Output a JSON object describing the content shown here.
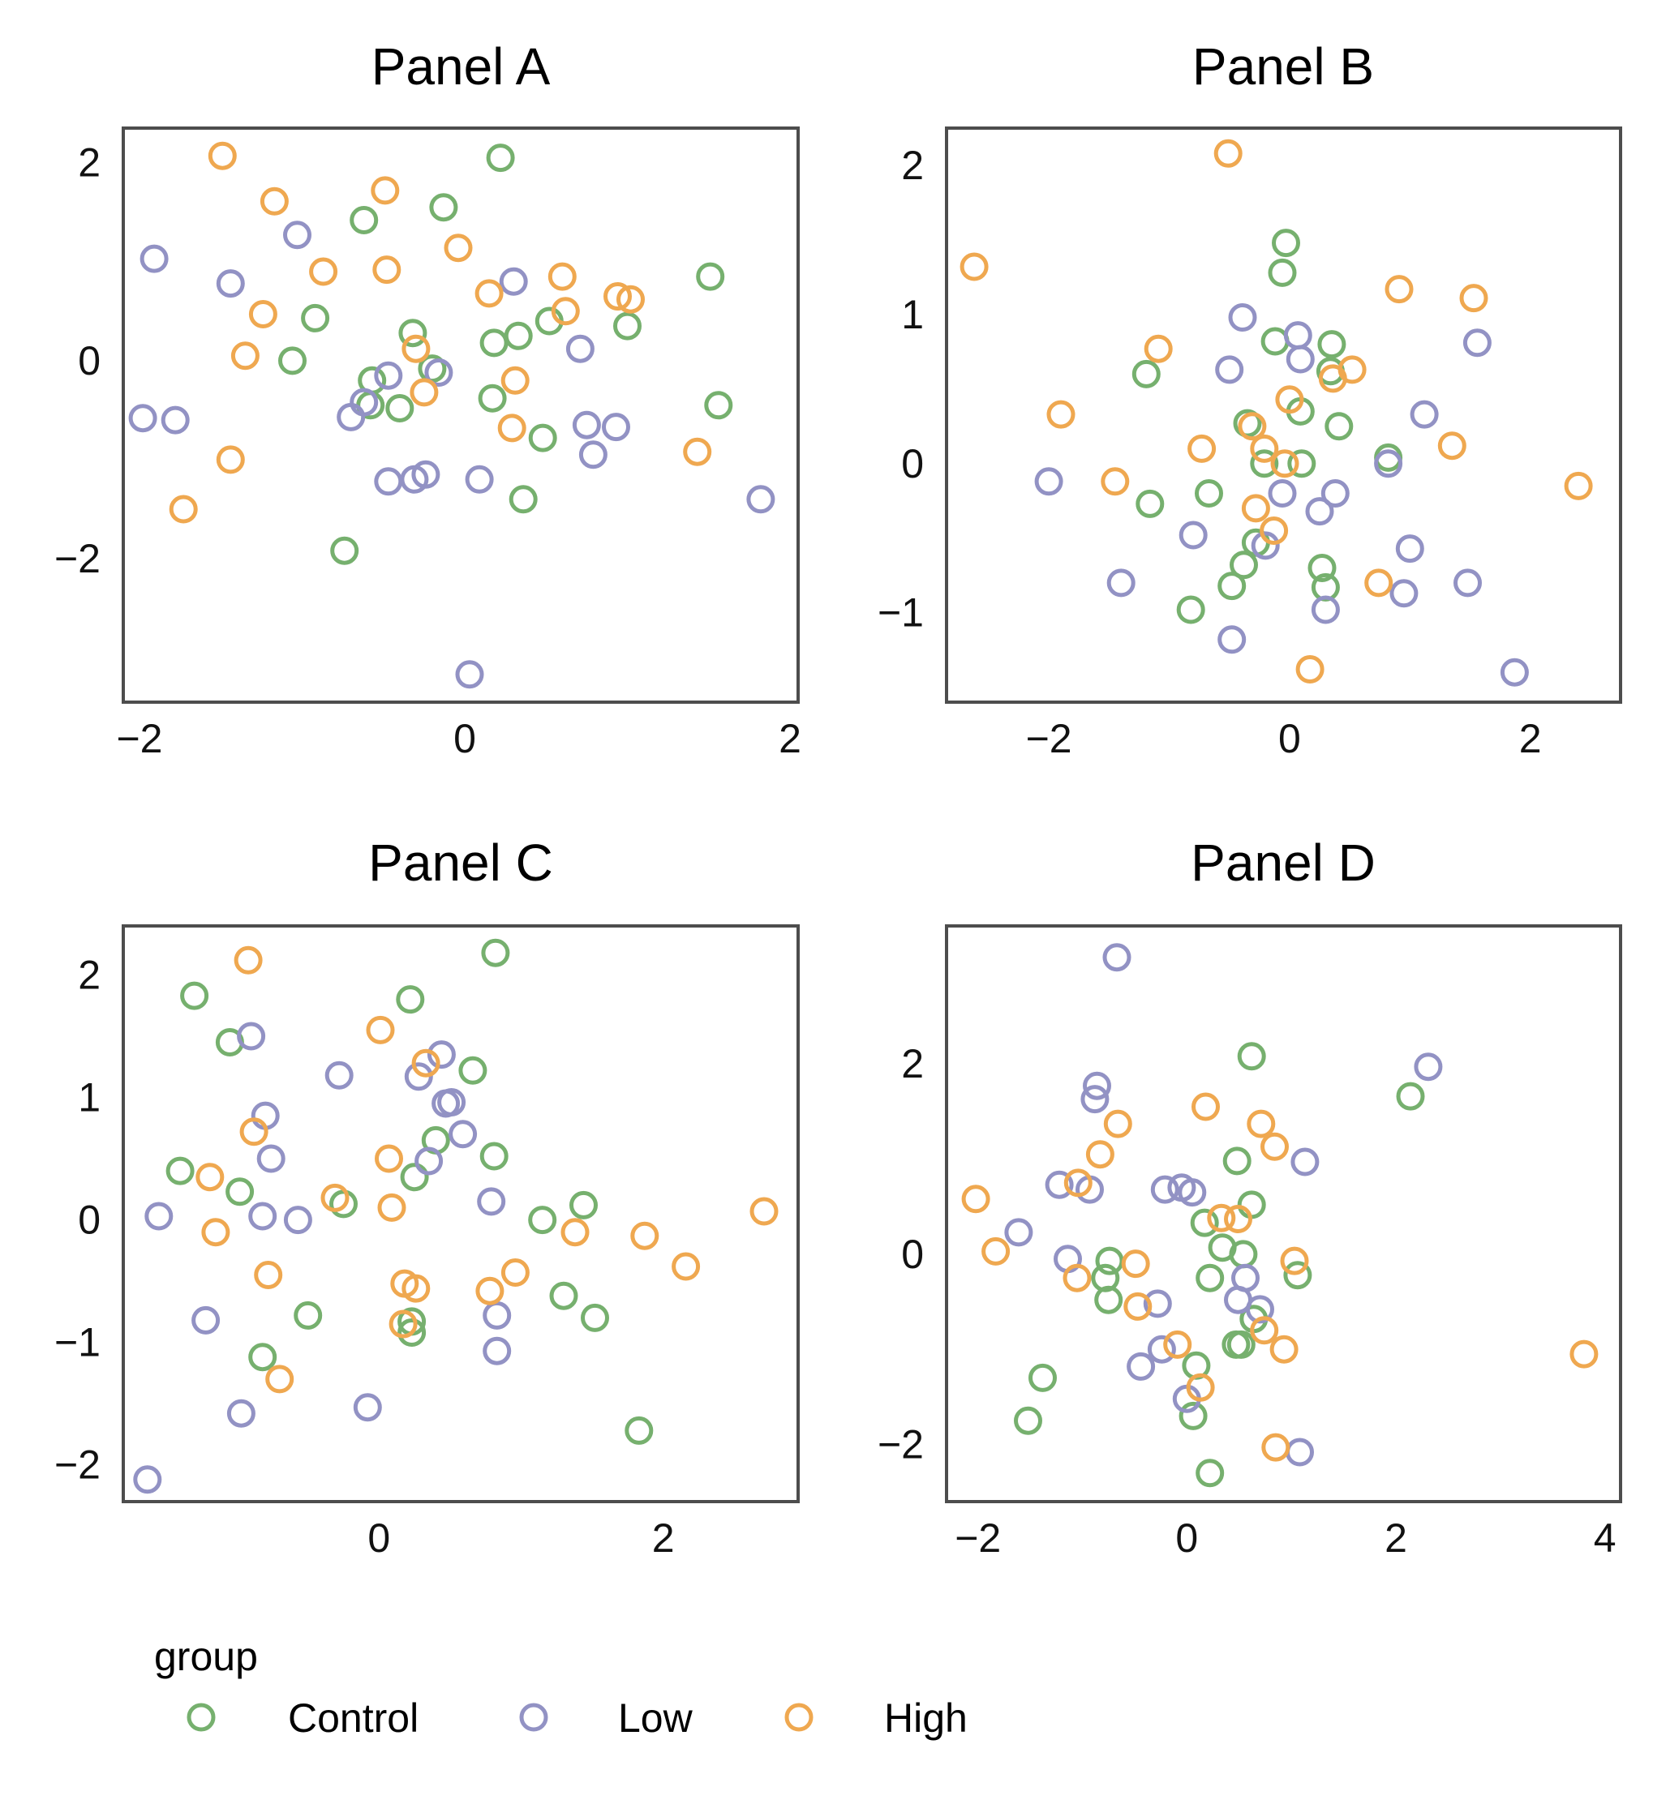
{
  "colors": {
    "Control": "#76B06E",
    "Low": "#9292C4",
    "High": "#EFA850",
    "frame": "#4d4d4d"
  },
  "legend": {
    "title": "group",
    "items": [
      {
        "key": "Control",
        "label": "Control"
      },
      {
        "key": "Low",
        "label": "Low"
      },
      {
        "key": "High",
        "label": "High"
      }
    ]
  },
  "chart_data": [
    {
      "type": "scatter",
      "title": "Panel A",
      "xlim": [
        -2.1,
        2.05
      ],
      "ylim": [
        -3.45,
        2.35
      ],
      "xticks": [
        -2,
        0,
        2
      ],
      "yticks": [
        -2,
        0,
        2
      ],
      "series": [
        {
          "name": "Control",
          "points": [
            [
              0.22,
              2.05
            ],
            [
              -0.13,
              1.55
            ],
            [
              -0.62,
              1.42
            ],
            [
              1.51,
              0.85
            ],
            [
              -0.92,
              0.43
            ],
            [
              0.52,
              0.4
            ],
            [
              1.0,
              0.35
            ],
            [
              0.33,
              0.25
            ],
            [
              -0.32,
              0.28
            ],
            [
              0.18,
              0.18
            ],
            [
              -1.06,
              0.0
            ],
            [
              -0.2,
              -0.08
            ],
            [
              -0.57,
              -0.2
            ],
            [
              -0.58,
              -0.45
            ],
            [
              -0.4,
              -0.48
            ],
            [
              0.17,
              -0.38
            ],
            [
              1.56,
              -0.45
            ],
            [
              0.48,
              -0.78
            ],
            [
              0.36,
              -1.4
            ],
            [
              -0.74,
              -1.92
            ]
          ]
        },
        {
          "name": "Low",
          "points": [
            [
              -1.91,
              1.03
            ],
            [
              -1.03,
              1.27
            ],
            [
              -1.44,
              0.78
            ],
            [
              0.3,
              0.8
            ],
            [
              0.71,
              0.12
            ],
            [
              -0.47,
              -0.15
            ],
            [
              -0.16,
              -0.12
            ],
            [
              -0.62,
              -0.42
            ],
            [
              -0.7,
              -0.57
            ],
            [
              -1.98,
              -0.58
            ],
            [
              -1.78,
              -0.6
            ],
            [
              0.75,
              -0.65
            ],
            [
              0.93,
              -0.67
            ],
            [
              0.79,
              -0.95
            ],
            [
              -0.47,
              -1.22
            ],
            [
              -0.31,
              -1.2
            ],
            [
              -0.24,
              -1.15
            ],
            [
              0.09,
              -1.2
            ],
            [
              1.82,
              -1.4
            ],
            [
              0.03,
              -3.17
            ]
          ]
        },
        {
          "name": "High",
          "points": [
            [
              -1.49,
              2.07
            ],
            [
              -1.17,
              1.61
            ],
            [
              -0.49,
              1.72
            ],
            [
              -0.04,
              1.14
            ],
            [
              -0.87,
              0.9
            ],
            [
              -0.48,
              0.92
            ],
            [
              0.15,
              0.68
            ],
            [
              0.6,
              0.85
            ],
            [
              0.94,
              0.65
            ],
            [
              1.02,
              0.62
            ],
            [
              0.62,
              0.5
            ],
            [
              -1.24,
              0.47
            ],
            [
              -1.35,
              0.05
            ],
            [
              -0.3,
              0.12
            ],
            [
              0.31,
              -0.2
            ],
            [
              -0.25,
              -0.32
            ],
            [
              0.29,
              -0.68
            ],
            [
              1.43,
              -0.92
            ],
            [
              -1.44,
              -1.0
            ],
            [
              -1.73,
              -1.5
            ]
          ]
        }
      ]
    },
    {
      "type": "scatter",
      "title": "Panel B",
      "xlim": [
        -2.85,
        2.75
      ],
      "ylim": [
        -1.6,
        2.25
      ],
      "xticks": [
        -2,
        0,
        2
      ],
      "yticks": [
        -1,
        0,
        1,
        2
      ],
      "series": [
        {
          "name": "Control",
          "points": [
            [
              -0.03,
              1.48
            ],
            [
              -0.06,
              1.28
            ],
            [
              -0.12,
              0.82
            ],
            [
              0.35,
              0.8
            ],
            [
              0.34,
              0.62
            ],
            [
              -1.19,
              0.6
            ],
            [
              0.09,
              0.35
            ],
            [
              -0.35,
              0.27
            ],
            [
              0.41,
              0.25
            ],
            [
              0.82,
              0.04
            ],
            [
              -0.21,
              0.0
            ],
            [
              0.1,
              0.0
            ],
            [
              -1.16,
              -0.27
            ],
            [
              -0.67,
              -0.2
            ],
            [
              -0.28,
              -0.53
            ],
            [
              -0.38,
              -0.68
            ],
            [
              0.27,
              -0.7
            ],
            [
              0.3,
              -0.83
            ],
            [
              -0.48,
              -0.82
            ],
            [
              -0.82,
              -0.98
            ]
          ]
        },
        {
          "name": "Low",
          "points": [
            [
              -0.39,
              0.98
            ],
            [
              0.07,
              0.86
            ],
            [
              1.56,
              0.81
            ],
            [
              0.09,
              0.7
            ],
            [
              -0.5,
              0.63
            ],
            [
              1.12,
              0.33
            ],
            [
              0.82,
              0.0
            ],
            [
              -0.06,
              -0.2
            ],
            [
              0.38,
              -0.2
            ],
            [
              0.25,
              -0.32
            ],
            [
              -2.0,
              -0.12
            ],
            [
              -0.8,
              -0.48
            ],
            [
              -0.2,
              -0.55
            ],
            [
              1.0,
              -0.57
            ],
            [
              -1.4,
              -0.8
            ],
            [
              0.95,
              -0.87
            ],
            [
              1.48,
              -0.8
            ],
            [
              0.3,
              -0.98
            ],
            [
              -0.48,
              -1.18
            ],
            [
              1.87,
              -1.4
            ]
          ]
        },
        {
          "name": "High",
          "points": [
            [
              -0.51,
              2.08
            ],
            [
              -2.62,
              1.32
            ],
            [
              0.91,
              1.17
            ],
            [
              1.53,
              1.11
            ],
            [
              -1.09,
              0.77
            ],
            [
              0.52,
              0.63
            ],
            [
              0.36,
              0.57
            ],
            [
              0.0,
              0.43
            ],
            [
              -1.9,
              0.33
            ],
            [
              -0.31,
              0.25
            ],
            [
              -0.73,
              0.1
            ],
            [
              -0.21,
              0.1
            ],
            [
              1.35,
              0.12
            ],
            [
              -0.04,
              0.0
            ],
            [
              -1.45,
              -0.12
            ],
            [
              -0.28,
              -0.3
            ],
            [
              -0.13,
              -0.45
            ],
            [
              2.4,
              -0.15
            ],
            [
              0.74,
              -0.8
            ],
            [
              0.17,
              -1.38
            ]
          ]
        }
      ]
    },
    {
      "type": "scatter",
      "title": "Panel C",
      "xlim": [
        -1.8,
        2.95
      ],
      "ylim": [
        -2.3,
        2.4
      ],
      "xticks": [
        0,
        2
      ],
      "yticks": [
        -2,
        -1,
        0,
        1,
        2
      ],
      "series": [
        {
          "name": "Control",
          "points": [
            [
              0.82,
              2.18
            ],
            [
              -1.3,
              1.83
            ],
            [
              0.22,
              1.8
            ],
            [
              -1.05,
              1.45
            ],
            [
              0.66,
              1.22
            ],
            [
              0.4,
              0.65
            ],
            [
              0.81,
              0.52
            ],
            [
              -1.4,
              0.4
            ],
            [
              0.25,
              0.35
            ],
            [
              -0.98,
              0.23
            ],
            [
              -0.25,
              0.13
            ],
            [
              1.44,
              0.12
            ],
            [
              1.15,
              0.0
            ],
            [
              1.3,
              -0.62
            ],
            [
              -0.5,
              -0.78
            ],
            [
              1.52,
              -0.8
            ],
            [
              0.23,
              -0.83
            ],
            [
              0.23,
              -0.92
            ],
            [
              -0.82,
              -1.12
            ],
            [
              1.83,
              -1.72
            ]
          ]
        },
        {
          "name": "Low",
          "points": [
            [
              -0.9,
              1.5
            ],
            [
              0.44,
              1.35
            ],
            [
              -0.28,
              1.18
            ],
            [
              0.28,
              1.17
            ],
            [
              0.51,
              0.96
            ],
            [
              0.47,
              0.95
            ],
            [
              -0.8,
              0.85
            ],
            [
              0.59,
              0.7
            ],
            [
              0.35,
              0.48
            ],
            [
              -0.76,
              0.5
            ],
            [
              0.79,
              0.15
            ],
            [
              -1.55,
              0.03
            ],
            [
              -0.82,
              0.03
            ],
            [
              -0.57,
              0.0
            ],
            [
              0.83,
              -0.78
            ],
            [
              -1.22,
              -0.82
            ],
            [
              0.83,
              -1.07
            ],
            [
              -0.97,
              -1.58
            ],
            [
              -0.08,
              -1.53
            ],
            [
              -1.63,
              -2.12
            ]
          ]
        },
        {
          "name": "High",
          "points": [
            [
              -0.92,
              2.12
            ],
            [
              0.01,
              1.55
            ],
            [
              0.33,
              1.28
            ],
            [
              -0.88,
              0.72
            ],
            [
              0.07,
              0.5
            ],
            [
              -1.19,
              0.35
            ],
            [
              -0.31,
              0.18
            ],
            [
              0.09,
              0.1
            ],
            [
              -1.15,
              -0.1
            ],
            [
              1.38,
              -0.1
            ],
            [
              1.87,
              -0.13
            ],
            [
              2.71,
              0.07
            ],
            [
              -0.78,
              -0.45
            ],
            [
              0.18,
              -0.52
            ],
            [
              0.26,
              -0.56
            ],
            [
              0.96,
              -0.43
            ],
            [
              0.78,
              -0.58
            ],
            [
              2.16,
              -0.38
            ],
            [
              0.17,
              -0.85
            ],
            [
              -0.7,
              -1.3
            ]
          ]
        }
      ]
    },
    {
      "type": "scatter",
      "title": "Panel D",
      "xlim": [
        -2.3,
        4.15
      ],
      "ylim": [
        -2.6,
        3.45
      ],
      "xticks": [
        -2,
        0,
        2,
        4
      ],
      "yticks": [
        -2,
        0,
        2
      ],
      "series": [
        {
          "name": "Control",
          "points": [
            [
              0.62,
              2.08
            ],
            [
              2.14,
              1.66
            ],
            [
              0.48,
              0.98
            ],
            [
              0.62,
              0.52
            ],
            [
              0.17,
              0.33
            ],
            [
              0.34,
              0.07
            ],
            [
              0.54,
              0.0
            ],
            [
              -0.74,
              -0.07
            ],
            [
              -0.75,
              -0.48
            ],
            [
              1.06,
              -0.22
            ],
            [
              0.22,
              -0.25
            ],
            [
              0.64,
              -0.68
            ],
            [
              0.47,
              -0.95
            ],
            [
              0.52,
              -0.95
            ],
            [
              0.09,
              -1.17
            ],
            [
              -1.38,
              -1.3
            ],
            [
              -1.52,
              -1.75
            ],
            [
              0.06,
              -1.7
            ],
            [
              0.22,
              -2.3
            ],
            [
              -0.78,
              -0.25
            ]
          ]
        },
        {
          "name": "Low",
          "points": [
            [
              -0.67,
              3.12
            ],
            [
              2.31,
              1.97
            ],
            [
              -0.86,
              1.77
            ],
            [
              -0.88,
              1.63
            ],
            [
              1.13,
              0.97
            ],
            [
              -1.22,
              0.73
            ],
            [
              -0.93,
              0.68
            ],
            [
              -0.21,
              0.68
            ],
            [
              -0.05,
              0.7
            ],
            [
              0.05,
              0.65
            ],
            [
              -1.61,
              0.23
            ],
            [
              -1.14,
              -0.05
            ],
            [
              -0.28,
              -0.52
            ],
            [
              0.56,
              -0.25
            ],
            [
              0.49,
              -0.48
            ],
            [
              0.7,
              -0.58
            ],
            [
              -0.24,
              -1.0
            ],
            [
              -0.44,
              -1.18
            ],
            [
              0.0,
              -1.52
            ],
            [
              1.08,
              -2.08
            ]
          ]
        },
        {
          "name": "High",
          "points": [
            [
              0.18,
              1.55
            ],
            [
              0.71,
              1.37
            ],
            [
              -0.66,
              1.37
            ],
            [
              0.84,
              1.13
            ],
            [
              -0.83,
              1.05
            ],
            [
              -1.04,
              0.75
            ],
            [
              -2.02,
              0.58
            ],
            [
              0.33,
              0.38
            ],
            [
              0.49,
              0.37
            ],
            [
              -1.83,
              0.03
            ],
            [
              1.03,
              -0.07
            ],
            [
              -0.49,
              -0.1
            ],
            [
              -1.05,
              -0.25
            ],
            [
              -0.47,
              -0.55
            ],
            [
              0.74,
              -0.8
            ],
            [
              0.93,
              -1.0
            ],
            [
              3.8,
              -1.05
            ],
            [
              0.13,
              -1.4
            ],
            [
              0.85,
              -2.03
            ],
            [
              -0.09,
              -0.95
            ]
          ]
        }
      ]
    }
  ]
}
